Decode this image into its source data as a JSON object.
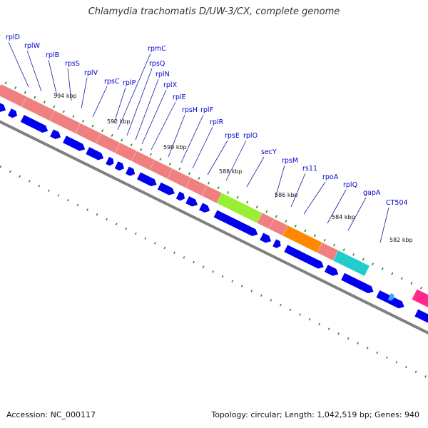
{
  "title": "Chlamydia trachomatis D/UW-3/CX, complete genome",
  "footer": {
    "accession": "Accession: NC_000117",
    "stats": "Topology: circular; Length: 1,042,519 bp; Genes: 940"
  },
  "gene_labels": [
    "rplD",
    "rplW",
    "rplB",
    "rpsS",
    "rplV",
    "rpsC",
    "rplP",
    "rpmC",
    "rpsQ",
    "rplN",
    "rplX",
    "rplE",
    "rpsH",
    "rplF",
    "rplR",
    "rpsE",
    "rplO",
    "secY",
    "rpsM",
    "rs11",
    "rpoA",
    "rplQ",
    "gapA",
    "CT504"
  ],
  "kbp_labels": [
    "594 kbp",
    "592 kbp",
    "590 kbp",
    "588 kbp",
    "586 kbp",
    "584 kbp",
    "582 kbp"
  ],
  "colors": {
    "rRNA_operon": "#f08080",
    "secY": "#99ee33",
    "rpoA": "#ff8800",
    "rplQ": "#22cccc",
    "gene_arrow": "#0000ee",
    "magenta_feature": "#ff2a8a",
    "light_blue_feature": "#33aaff",
    "backbone": "#808080",
    "tick": "#228b22"
  }
}
